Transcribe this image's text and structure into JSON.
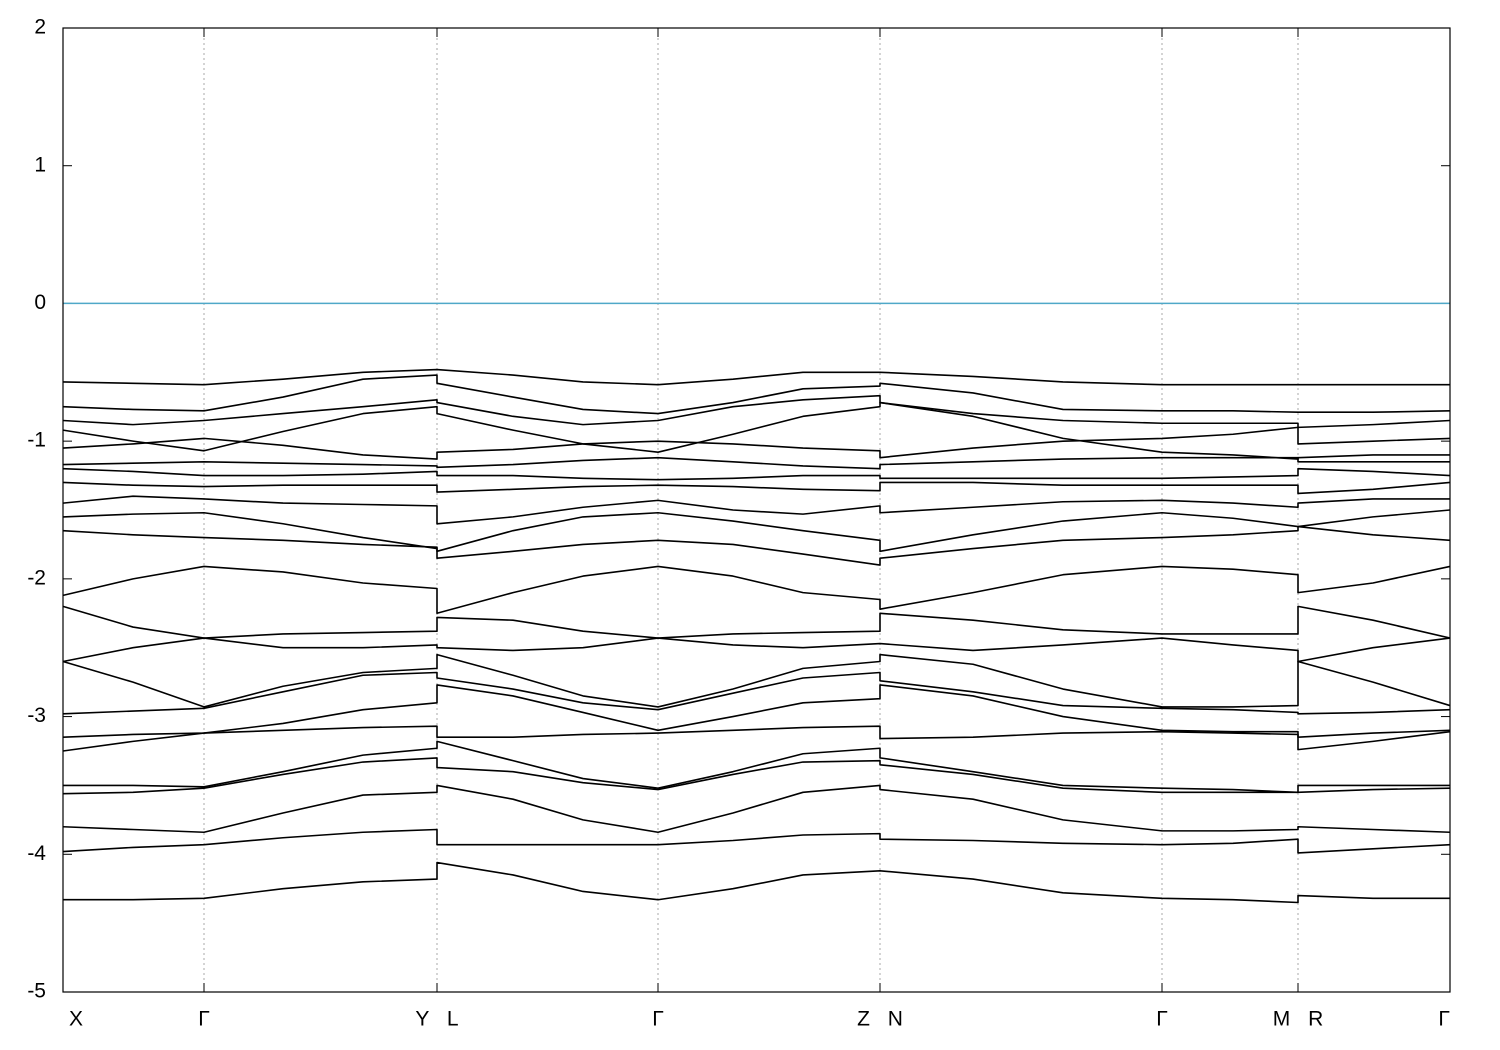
{
  "chart_data": {
    "type": "line",
    "x": [
      0,
      0.7,
      1.41,
      2.2,
      3.0,
      3.74,
      3.74,
      4.5,
      5.2,
      5.95,
      6.7,
      7.4,
      8.17,
      8.17,
      9.1,
      10.0,
      10.99,
      11.7,
      12.35,
      12.35,
      13.1,
      13.87
    ],
    "xlim": [
      0,
      13.87
    ],
    "xticks": [
      {
        "value": 0,
        "label": "X"
      },
      {
        "value": 1.41,
        "label": "Γ"
      },
      {
        "value": 3.74,
        "label": "Y L"
      },
      {
        "value": 5.95,
        "label": "Γ"
      },
      {
        "value": 8.17,
        "label": "Z N"
      },
      {
        "value": 10.99,
        "label": "Γ"
      },
      {
        "value": 12.35,
        "label": "M R"
      },
      {
        "value": 13.87,
        "label": "Γ"
      }
    ],
    "ylim": [
      -5,
      2
    ],
    "yticks": [
      2,
      1,
      0,
      -1,
      -2,
      -3,
      -4,
      -5
    ],
    "grid": true,
    "grid_color": "#aaaaaa",
    "hline": {
      "value": 0,
      "color": "#4fa8c8"
    },
    "series": [
      {
        "color": "#000000",
        "values": [
          -4.33,
          -4.33,
          -4.32,
          -4.25,
          -4.2,
          -4.18,
          -4.06,
          -4.15,
          -4.27,
          -4.33,
          -4.25,
          -4.15,
          -4.12,
          -4.12,
          -4.18,
          -4.28,
          -4.32,
          -4.33,
          -4.35,
          -4.3,
          -4.32,
          -4.32
        ]
      },
      {
        "color": "#000000",
        "values": [
          -3.98,
          -3.95,
          -3.93,
          -3.88,
          -3.84,
          -3.82,
          -3.93,
          -3.93,
          -3.93,
          -3.93,
          -3.9,
          -3.86,
          -3.85,
          -3.89,
          -3.9,
          -3.92,
          -3.93,
          -3.92,
          -3.89,
          -3.99,
          -3.96,
          -3.93
        ]
      },
      {
        "color": "#000000",
        "values": [
          -3.8,
          -3.82,
          -3.84,
          -3.7,
          -3.57,
          -3.55,
          -3.5,
          -3.6,
          -3.75,
          -3.84,
          -3.7,
          -3.55,
          -3.5,
          -3.53,
          -3.6,
          -3.75,
          -3.83,
          -3.83,
          -3.82,
          -3.8,
          -3.82,
          -3.84
        ]
      },
      {
        "color": "#000000",
        "values": [
          -3.56,
          -3.55,
          -3.52,
          -3.42,
          -3.33,
          -3.3,
          -3.37,
          -3.4,
          -3.48,
          -3.53,
          -3.42,
          -3.33,
          -3.32,
          -3.35,
          -3.42,
          -3.52,
          -3.55,
          -3.55,
          -3.55,
          -3.55,
          -3.53,
          -3.52
        ]
      },
      {
        "color": "#000000",
        "values": [
          -3.5,
          -3.5,
          -3.51,
          -3.4,
          -3.28,
          -3.23,
          -3.18,
          -3.32,
          -3.45,
          -3.52,
          -3.4,
          -3.27,
          -3.23,
          -3.3,
          -3.4,
          -3.5,
          -3.52,
          -3.53,
          -3.55,
          -3.5,
          -3.5,
          -3.5
        ]
      },
      {
        "color": "#000000",
        "values": [
          -3.25,
          -3.18,
          -3.12,
          -3.1,
          -3.08,
          -3.07,
          -3.15,
          -3.15,
          -3.13,
          -3.12,
          -3.1,
          -3.08,
          -3.07,
          -3.16,
          -3.15,
          -3.12,
          -3.11,
          -3.12,
          -3.13,
          -3.24,
          -3.18,
          -3.11
        ]
      },
      {
        "color": "#000000",
        "values": [
          -3.15,
          -3.13,
          -3.12,
          -3.05,
          -2.95,
          -2.9,
          -2.77,
          -2.85,
          -2.97,
          -3.1,
          -3.0,
          -2.9,
          -2.87,
          -2.77,
          -2.85,
          -3.0,
          -3.1,
          -3.11,
          -3.11,
          -3.15,
          -3.12,
          -3.1
        ]
      },
      {
        "color": "#000000",
        "values": [
          -2.98,
          -2.96,
          -2.94,
          -2.82,
          -2.7,
          -2.68,
          -2.72,
          -2.8,
          -2.9,
          -2.95,
          -2.83,
          -2.72,
          -2.68,
          -2.74,
          -2.82,
          -2.92,
          -2.94,
          -2.95,
          -2.97,
          -2.98,
          -2.97,
          -2.95
        ]
      },
      {
        "color": "#000000",
        "values": [
          -2.6,
          -2.75,
          -2.93,
          -2.78,
          -2.68,
          -2.65,
          -2.55,
          -2.7,
          -2.85,
          -2.93,
          -2.8,
          -2.65,
          -2.6,
          -2.55,
          -2.62,
          -2.8,
          -2.93,
          -2.93,
          -2.92,
          -2.6,
          -2.75,
          -2.92
        ]
      },
      {
        "color": "#000000",
        "values": [
          -2.6,
          -2.5,
          -2.43,
          -2.5,
          -2.5,
          -2.48,
          -2.5,
          -2.52,
          -2.5,
          -2.43,
          -2.48,
          -2.5,
          -2.47,
          -2.47,
          -2.52,
          -2.48,
          -2.43,
          -2.48,
          -2.52,
          -2.6,
          -2.5,
          -2.43
        ]
      },
      {
        "color": "#000000",
        "values": [
          -2.2,
          -2.35,
          -2.43,
          -2.4,
          -2.39,
          -2.38,
          -2.28,
          -2.3,
          -2.38,
          -2.43,
          -2.4,
          -2.39,
          -2.38,
          -2.25,
          -2.3,
          -2.37,
          -2.4,
          -2.4,
          -2.4,
          -2.2,
          -2.3,
          -2.43
        ]
      },
      {
        "color": "#000000",
        "values": [
          -2.12,
          -2.0,
          -1.91,
          -1.95,
          -2.03,
          -2.07,
          -2.25,
          -2.1,
          -1.98,
          -1.91,
          -1.98,
          -2.1,
          -2.15,
          -2.22,
          -2.1,
          -1.97,
          -1.91,
          -1.93,
          -1.97,
          -2.1,
          -2.03,
          -1.91
        ]
      },
      {
        "color": "#000000",
        "values": [
          -1.65,
          -1.68,
          -1.7,
          -1.72,
          -1.75,
          -1.77,
          -1.85,
          -1.8,
          -1.75,
          -1.72,
          -1.75,
          -1.82,
          -1.9,
          -1.85,
          -1.78,
          -1.72,
          -1.7,
          -1.68,
          -1.65,
          -1.62,
          -1.68,
          -1.72
        ]
      },
      {
        "color": "#000000",
        "values": [
          -1.55,
          -1.53,
          -1.52,
          -1.6,
          -1.7,
          -1.78,
          -1.8,
          -1.65,
          -1.55,
          -1.52,
          -1.58,
          -1.65,
          -1.72,
          -1.8,
          -1.68,
          -1.58,
          -1.52,
          -1.56,
          -1.62,
          -1.62,
          -1.55,
          -1.5
        ]
      },
      {
        "color": "#000000",
        "values": [
          -1.45,
          -1.4,
          -1.42,
          -1.45,
          -1.46,
          -1.47,
          -1.6,
          -1.55,
          -1.48,
          -1.43,
          -1.5,
          -1.53,
          -1.47,
          -1.52,
          -1.48,
          -1.44,
          -1.43,
          -1.45,
          -1.48,
          -1.45,
          -1.42,
          -1.42
        ]
      },
      {
        "color": "#000000",
        "values": [
          -1.3,
          -1.32,
          -1.33,
          -1.32,
          -1.32,
          -1.32,
          -1.37,
          -1.35,
          -1.33,
          -1.32,
          -1.33,
          -1.35,
          -1.36,
          -1.3,
          -1.3,
          -1.32,
          -1.32,
          -1.32,
          -1.32,
          -1.38,
          -1.35,
          -1.3
        ]
      },
      {
        "color": "#000000",
        "values": [
          -1.2,
          -1.22,
          -1.25,
          -1.25,
          -1.24,
          -1.22,
          -1.25,
          -1.25,
          -1.27,
          -1.28,
          -1.27,
          -1.25,
          -1.25,
          -1.27,
          -1.27,
          -1.27,
          -1.27,
          -1.26,
          -1.25,
          -1.2,
          -1.22,
          -1.25
        ]
      },
      {
        "color": "#000000",
        "values": [
          -1.17,
          -1.16,
          -1.15,
          -1.16,
          -1.17,
          -1.18,
          -1.19,
          -1.17,
          -1.14,
          -1.12,
          -1.15,
          -1.18,
          -1.2,
          -1.17,
          -1.15,
          -1.13,
          -1.12,
          -1.12,
          -1.12,
          -1.15,
          -1.15,
          -1.15
        ]
      },
      {
        "color": "#000000",
        "values": [
          -1.05,
          -1.02,
          -0.98,
          -1.03,
          -1.1,
          -1.13,
          -1.08,
          -1.06,
          -1.02,
          -1.0,
          -1.02,
          -1.05,
          -1.07,
          -1.12,
          -1.05,
          -1.0,
          -0.98,
          -0.95,
          -0.9,
          -1.02,
          -1.0,
          -0.98
        ]
      },
      {
        "color": "#000000",
        "values": [
          -0.92,
          -1.0,
          -1.07,
          -0.93,
          -0.8,
          -0.75,
          -0.8,
          -0.92,
          -1.02,
          -1.08,
          -0.95,
          -0.82,
          -0.75,
          -0.72,
          -0.82,
          -0.98,
          -1.08,
          -1.1,
          -1.13,
          -1.12,
          -1.1,
          -1.1
        ]
      },
      {
        "color": "#000000",
        "values": [
          -0.85,
          -0.88,
          -0.85,
          -0.8,
          -0.75,
          -0.7,
          -0.72,
          -0.82,
          -0.88,
          -0.85,
          -0.75,
          -0.7,
          -0.67,
          -0.72,
          -0.8,
          -0.85,
          -0.87,
          -0.87,
          -0.87,
          -0.9,
          -0.88,
          -0.85
        ]
      },
      {
        "color": "#000000",
        "values": [
          -0.75,
          -0.77,
          -0.78,
          -0.68,
          -0.55,
          -0.52,
          -0.58,
          -0.68,
          -0.77,
          -0.8,
          -0.72,
          -0.62,
          -0.6,
          -0.58,
          -0.65,
          -0.77,
          -0.78,
          -0.78,
          -0.79,
          -0.79,
          -0.79,
          -0.78
        ]
      },
      {
        "color": "#000000",
        "values": [
          -0.57,
          -0.58,
          -0.59,
          -0.55,
          -0.5,
          -0.48,
          -0.48,
          -0.52,
          -0.57,
          -0.59,
          -0.55,
          -0.5,
          -0.5,
          -0.5,
          -0.53,
          -0.57,
          -0.59,
          -0.59,
          -0.59,
          -0.59,
          -0.59,
          -0.59
        ]
      }
    ]
  }
}
